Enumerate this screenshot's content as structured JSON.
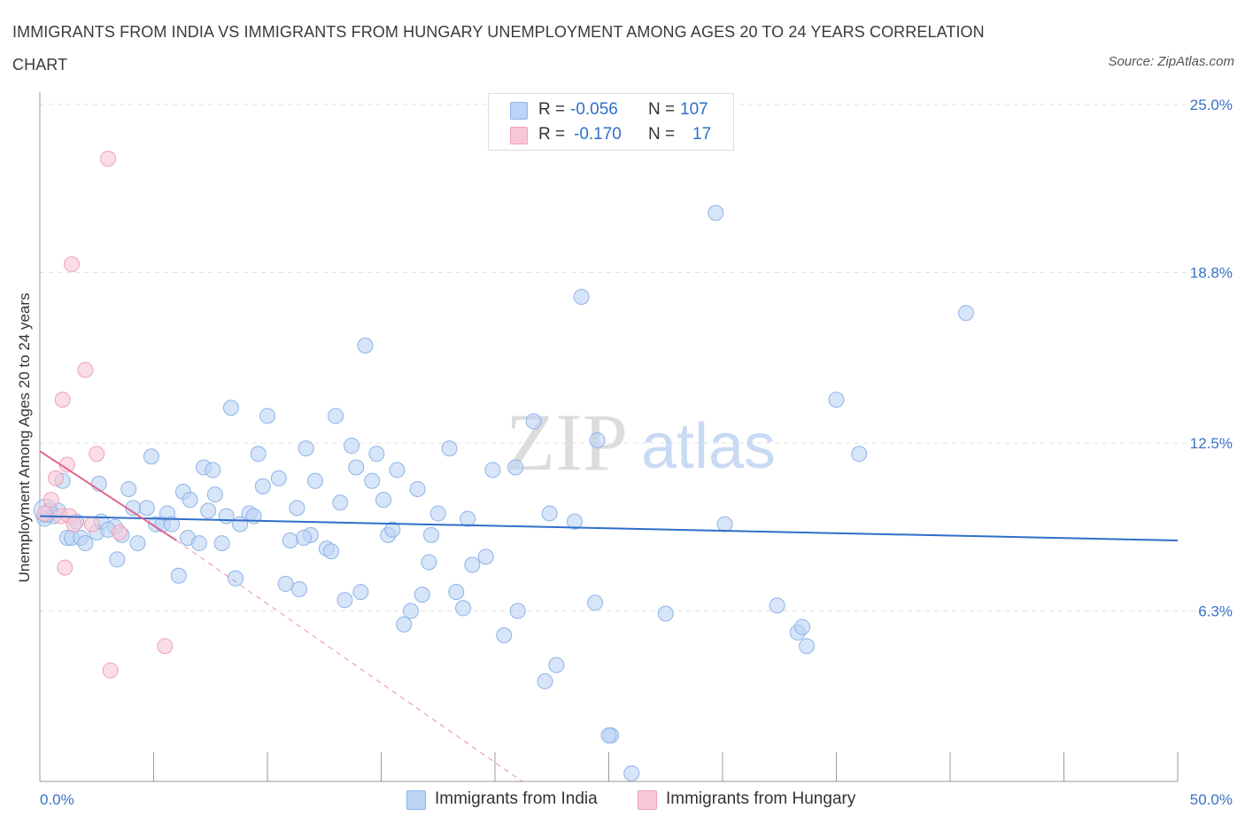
{
  "title": "IMMIGRANTS FROM INDIA VS IMMIGRANTS FROM HUNGARY UNEMPLOYMENT AMONG AGES 20 TO 24 YEARS CORRELATION CHART",
  "source": "Source: ZipAtlas.com",
  "watermark": {
    "zip": "ZIP",
    "atlas": "atlas"
  },
  "legend": {
    "india": {
      "r_label": "R =",
      "r_value": "-0.056",
      "n_label": "N =",
      "n_value": "107"
    },
    "hungary": {
      "r_label": "R =",
      "r_value": "-0.170",
      "n_label": "N =",
      "n_value": "17"
    }
  },
  "colors": {
    "india_fill": "#bcd4f5",
    "india_stroke": "#8fb3e6",
    "india_line": "#2f6fc6",
    "hungary_fill": "#f8c7d6",
    "hungary_stroke": "#eea3bb",
    "hungary_line": "#e0668f",
    "axis_label": "#3a72c4",
    "grid": "#e3e3e3"
  },
  "chart_data": {
    "type": "scatter",
    "title": "IMMIGRANTS FROM INDIA VS IMMIGRANTS FROM HUNGARY UNEMPLOYMENT AMONG AGES 20 TO 24 YEARS CORRELATION CHART",
    "xlabel": "",
    "ylabel": "Unemployment Among Ages 20 to 24 years",
    "xlim": [
      0,
      50
    ],
    "ylim": [
      0,
      25.0
    ],
    "x_tick_labels": [
      "0.0%",
      "50.0%"
    ],
    "y_ticks": [
      6.3,
      12.5,
      18.8,
      25.0
    ],
    "y_tick_labels": [
      "6.3%",
      "12.5%",
      "18.8%",
      "25.0%"
    ],
    "grid": true,
    "legend_position": "top-center",
    "series": [
      {
        "name": "Immigrants from India",
        "r": -0.056,
        "n": 107,
        "trend": {
          "x0": 0,
          "y0": 9.8,
          "x1": 50,
          "y1": 8.9
        },
        "points": [
          [
            0.4,
            10.0
          ],
          [
            0.6,
            9.8
          ],
          [
            0.8,
            10.0
          ],
          [
            1.0,
            11.1
          ],
          [
            1.2,
            9.0
          ],
          [
            1.4,
            9.0
          ],
          [
            1.6,
            9.6
          ],
          [
            1.8,
            9.0
          ],
          [
            2.0,
            8.8
          ],
          [
            2.5,
            9.2
          ],
          [
            2.6,
            11.0
          ],
          [
            2.7,
            9.6
          ],
          [
            3.3,
            9.4
          ],
          [
            3.4,
            8.2
          ],
          [
            3.6,
            9.1
          ],
          [
            3.9,
            10.8
          ],
          [
            4.1,
            10.1
          ],
          [
            4.3,
            8.8
          ],
          [
            4.7,
            10.1
          ],
          [
            4.9,
            12.0
          ],
          [
            5.1,
            9.5
          ],
          [
            5.4,
            9.5
          ],
          [
            5.6,
            9.9
          ],
          [
            5.8,
            9.5
          ],
          [
            6.1,
            7.6
          ],
          [
            6.3,
            10.7
          ],
          [
            6.5,
            9.0
          ],
          [
            6.6,
            10.4
          ],
          [
            7.0,
            8.8
          ],
          [
            7.2,
            11.6
          ],
          [
            7.4,
            10.0
          ],
          [
            7.6,
            11.5
          ],
          [
            7.7,
            10.6
          ],
          [
            8.0,
            8.8
          ],
          [
            8.2,
            9.8
          ],
          [
            8.4,
            13.8
          ],
          [
            8.6,
            7.5
          ],
          [
            8.8,
            9.5
          ],
          [
            9.2,
            9.9
          ],
          [
            9.4,
            9.8
          ],
          [
            9.6,
            12.1
          ],
          [
            9.8,
            10.9
          ],
          [
            10.0,
            13.5
          ],
          [
            10.5,
            11.2
          ],
          [
            10.8,
            7.3
          ],
          [
            11.0,
            8.9
          ],
          [
            11.3,
            10.1
          ],
          [
            11.4,
            7.1
          ],
          [
            11.7,
            12.3
          ],
          [
            11.9,
            9.1
          ],
          [
            12.1,
            11.1
          ],
          [
            12.6,
            8.6
          ],
          [
            12.8,
            8.5
          ],
          [
            13.0,
            13.5
          ],
          [
            13.2,
            10.3
          ],
          [
            13.4,
            6.7
          ],
          [
            13.7,
            12.4
          ],
          [
            13.9,
            11.6
          ],
          [
            14.1,
            7.0
          ],
          [
            14.3,
            16.1
          ],
          [
            14.6,
            11.1
          ],
          [
            14.8,
            12.1
          ],
          [
            15.1,
            10.4
          ],
          [
            15.3,
            9.1
          ],
          [
            15.5,
            9.3
          ],
          [
            15.7,
            11.5
          ],
          [
            16.0,
            5.8
          ],
          [
            16.3,
            6.3
          ],
          [
            16.6,
            10.8
          ],
          [
            16.8,
            6.9
          ],
          [
            17.1,
            8.1
          ],
          [
            17.2,
            9.1
          ],
          [
            17.5,
            9.9
          ],
          [
            18.0,
            12.3
          ],
          [
            18.3,
            7.0
          ],
          [
            18.6,
            6.4
          ],
          [
            18.8,
            9.7
          ],
          [
            19.0,
            8.0
          ],
          [
            19.6,
            8.3
          ],
          [
            19.9,
            11.5
          ],
          [
            20.4,
            5.4
          ],
          [
            20.9,
            11.6
          ],
          [
            21.0,
            6.3
          ],
          [
            21.7,
            13.3
          ],
          [
            22.2,
            3.7
          ],
          [
            22.4,
            9.9
          ],
          [
            22.7,
            4.3
          ],
          [
            23.5,
            9.6
          ],
          [
            23.8,
            17.9
          ],
          [
            24.4,
            6.6
          ],
          [
            24.5,
            12.6
          ],
          [
            25.1,
            1.7
          ],
          [
            25.0,
            1.7
          ],
          [
            26.0,
            0.3
          ],
          [
            27.5,
            6.2
          ],
          [
            29.7,
            21.0
          ],
          [
            30.1,
            9.5
          ],
          [
            32.4,
            6.5
          ],
          [
            33.3,
            5.5
          ],
          [
            33.5,
            5.7
          ],
          [
            33.7,
            5.0
          ],
          [
            35.0,
            14.1
          ],
          [
            36.0,
            12.1
          ],
          [
            40.7,
            17.3
          ],
          [
            0.2,
            9.7
          ],
          [
            3.0,
            9.3
          ],
          [
            11.6,
            9.0
          ]
        ]
      },
      {
        "name": "Immigrants from Hungary",
        "r": -0.17,
        "n": 17,
        "trend": {
          "x0": 0,
          "y0": 12.2,
          "x1": 6.0,
          "y1": 8.9
        },
        "trend_dashed_extension": {
          "x0": 6.0,
          "y0": 8.9,
          "x1": 21.2,
          "y1": 0
        },
        "points": [
          [
            0.2,
            9.9
          ],
          [
            0.5,
            10.4
          ],
          [
            0.7,
            11.2
          ],
          [
            0.9,
            9.8
          ],
          [
            1.0,
            14.1
          ],
          [
            1.1,
            7.9
          ],
          [
            1.2,
            11.7
          ],
          [
            1.3,
            9.8
          ],
          [
            1.4,
            19.1
          ],
          [
            1.5,
            9.5
          ],
          [
            2.0,
            15.2
          ],
          [
            2.3,
            9.5
          ],
          [
            2.5,
            12.1
          ],
          [
            3.1,
            4.1
          ],
          [
            3.5,
            9.2
          ],
          [
            3.0,
            23.0
          ],
          [
            5.5,
            5.0
          ]
        ]
      }
    ]
  },
  "bottom_legend": {
    "india_label": "Immigrants from India",
    "hungary_label": "Immigrants from Hungary"
  }
}
